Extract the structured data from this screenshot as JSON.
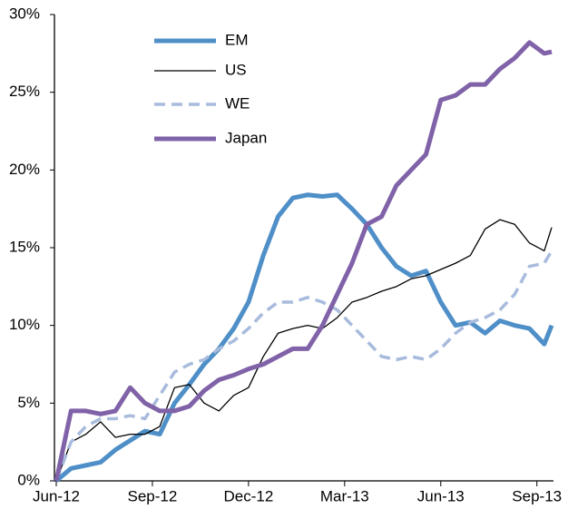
{
  "chart_data": {
    "type": "line",
    "x": [
      0,
      2,
      4,
      6,
      8,
      10,
      12,
      14,
      16,
      18,
      20,
      22,
      24,
      26,
      28,
      30,
      32,
      34,
      36,
      38,
      40,
      42,
      44,
      46,
      48,
      50,
      52,
      54,
      56,
      58,
      60,
      62,
      64,
      66,
      67
    ],
    "xlim": [
      0,
      67
    ],
    "xticks": [
      {
        "value": 0,
        "label": "Jun-12"
      },
      {
        "value": 13,
        "label": "Sep-12"
      },
      {
        "value": 26,
        "label": "Dec-12"
      },
      {
        "value": 39,
        "label": "Mar-13"
      },
      {
        "value": 52,
        "label": "Jun-13"
      },
      {
        "value": 65,
        "label": "Sep-13"
      }
    ],
    "ylim": [
      0,
      30
    ],
    "yticks": [
      {
        "value": 0,
        "label": "0%"
      },
      {
        "value": 5,
        "label": "5%"
      },
      {
        "value": 10,
        "label": "10%"
      },
      {
        "value": 15,
        "label": "15%"
      },
      {
        "value": 20,
        "label": "20%"
      },
      {
        "value": 25,
        "label": "25%"
      },
      {
        "value": 30,
        "label": "30%"
      }
    ],
    "legend": "upper left",
    "series": [
      {
        "name": "EM",
        "color": "#4f8fc8",
        "width": 5,
        "dashed": false,
        "values": [
          0,
          0.8,
          1.0,
          1.2,
          2.0,
          2.6,
          3.2,
          3.0,
          5.0,
          6.2,
          7.5,
          8.5,
          9.8,
          11.5,
          14.5,
          17.0,
          18.2,
          18.4,
          18.3,
          18.4,
          17.5,
          16.5,
          15.0,
          13.8,
          13.2,
          13.5,
          11.5,
          10.0,
          10.2,
          9.5,
          10.3,
          10.0,
          9.8,
          8.8,
          10.0
        ]
      },
      {
        "name": "US",
        "color": "#000000",
        "width": 1.3,
        "dashed": false,
        "values": [
          0,
          2.5,
          3.0,
          3.8,
          2.8,
          3.0,
          3.0,
          3.5,
          6.0,
          6.2,
          5.0,
          4.5,
          5.5,
          6.0,
          8.0,
          9.5,
          9.8,
          10.0,
          9.8,
          10.5,
          11.5,
          11.8,
          12.2,
          12.5,
          13.0,
          13.2,
          13.6,
          14.0,
          14.5,
          16.2,
          16.8,
          16.5,
          15.3,
          14.8,
          16.3
        ]
      },
      {
        "name": "WE",
        "color": "#a8bbdd",
        "width": 3.5,
        "dashed": true,
        "values": [
          0,
          2.5,
          3.5,
          4.0,
          4.0,
          4.2,
          4.0,
          5.5,
          7.0,
          7.5,
          7.8,
          8.5,
          9.0,
          9.8,
          10.8,
          11.5,
          11.5,
          11.8,
          11.5,
          11.0,
          10.0,
          9.0,
          8.0,
          7.8,
          8.0,
          7.8,
          8.5,
          9.5,
          10.2,
          10.5,
          11.0,
          12.0,
          13.8,
          14.0,
          14.8
        ]
      },
      {
        "name": "Japan",
        "color": "#8062a8",
        "width": 5,
        "dashed": false,
        "values": [
          0,
          4.5,
          4.5,
          4.3,
          4.5,
          6.0,
          5.0,
          4.5,
          4.5,
          4.8,
          5.8,
          6.5,
          6.8,
          7.2,
          7.5,
          8.0,
          8.5,
          8.5,
          10.0,
          12.0,
          14.0,
          16.5,
          17.0,
          19.0,
          20.0,
          21.0,
          24.5,
          24.8,
          25.5,
          25.5,
          26.5,
          27.2,
          28.2,
          27.5,
          27.6
        ]
      }
    ]
  }
}
